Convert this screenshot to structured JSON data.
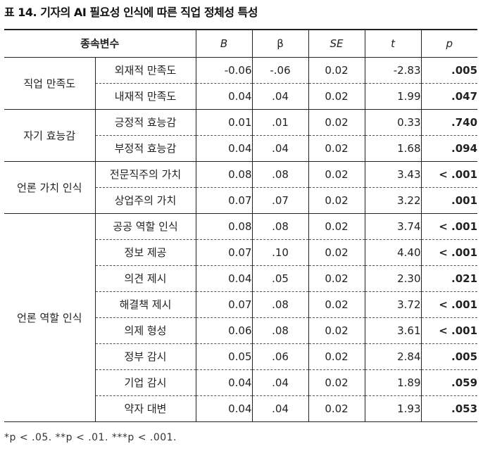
{
  "caption": "표 14. 기자의 AI 필요성 인식에 따른 직업 정체성 특성",
  "table": {
    "headers": {
      "dv": "종속변수",
      "b": "B",
      "beta": "β",
      "se": "SE",
      "t": "t",
      "p": "p"
    },
    "groups": [
      {
        "label": "직업 만족도",
        "rows": [
          {
            "var": "외재적 만족도",
            "b": "-0.06",
            "beta": "-.06",
            "se": "0.02",
            "t": "-2.83",
            "p": ".005"
          },
          {
            "var": "내재적 만족도",
            "b": "0.04",
            "beta": ".04",
            "se": "0.02",
            "t": "1.99",
            "p": ".047"
          }
        ]
      },
      {
        "label": "자기 효능감",
        "rows": [
          {
            "var": "긍정적 효능감",
            "b": "0.01",
            "beta": ".01",
            "se": "0.02",
            "t": "0.33",
            "p": ".740"
          },
          {
            "var": "부정적 효능감",
            "b": "0.04",
            "beta": ".04",
            "se": "0.02",
            "t": "1.68",
            "p": ".094"
          }
        ]
      },
      {
        "label": "언론 가치 인식",
        "rows": [
          {
            "var": "전문직주의 가치",
            "b": "0.08",
            "beta": ".08",
            "se": "0.02",
            "t": "3.43",
            "p": "< .001"
          },
          {
            "var": "상업주의 가치",
            "b": "0.07",
            "beta": ".07",
            "se": "0.02",
            "t": "3.22",
            "p": ".001"
          }
        ]
      },
      {
        "label": "언론 역할 인식",
        "rows": [
          {
            "var": "공공 역할 인식",
            "b": "0.08",
            "beta": ".08",
            "se": "0.02",
            "t": "3.74",
            "p": "< .001"
          },
          {
            "var": "정보 제공",
            "b": "0.07",
            "beta": ".10",
            "se": "0.02",
            "t": "4.40",
            "p": "< .001"
          },
          {
            "var": "의견 제시",
            "b": "0.04",
            "beta": ".05",
            "se": "0.02",
            "t": "2.30",
            "p": ".021"
          },
          {
            "var": "해결책 제시",
            "b": "0.07",
            "beta": ".08",
            "se": "0.02",
            "t": "3.72",
            "p": "< .001"
          },
          {
            "var": "의제 형성",
            "b": "0.06",
            "beta": ".08",
            "se": "0.02",
            "t": "3.61",
            "p": "< .001"
          },
          {
            "var": "정부 감시",
            "b": "0.05",
            "beta": ".06",
            "se": "0.02",
            "t": "2.84",
            "p": ".005"
          },
          {
            "var": "기업 감시",
            "b": "0.04",
            "beta": ".04",
            "se": "0.02",
            "t": "1.89",
            "p": ".059"
          },
          {
            "var": "약자 대변",
            "b": "0.04",
            "beta": ".04",
            "se": "0.02",
            "t": "1.93",
            "p": ".053"
          }
        ]
      }
    ]
  },
  "footnote": "*p < .05. **p < .01. ***p < .001."
}
